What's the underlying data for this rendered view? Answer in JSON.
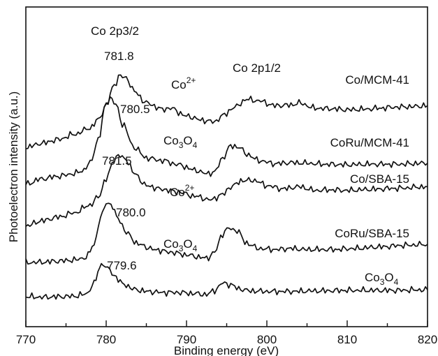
{
  "chart_data": {
    "type": "line",
    "xlabel": "Binding energy (eV)",
    "ylabel": "Photoelectron intensity (a.u.)",
    "xlim": [
      770,
      820
    ],
    "xticks": [
      "770",
      "780",
      "790",
      "800",
      "810",
      "820"
    ],
    "y_ticks_shown": false,
    "grid": false,
    "series": [
      {
        "name": "Co/MCM-41",
        "values": [
          [
            770,
            3.05
          ],
          [
            772,
            3.13
          ],
          [
            774,
            3.2
          ],
          [
            776,
            3.3
          ],
          [
            778,
            3.42
          ],
          [
            779,
            3.58
          ],
          [
            780,
            3.85
          ],
          [
            781,
            4.25
          ],
          [
            781.8,
            4.42
          ],
          [
            782.5,
            4.38
          ],
          [
            783.5,
            4.12
          ],
          [
            785,
            3.9
          ],
          [
            787,
            3.78
          ],
          [
            788,
            3.8
          ],
          [
            790,
            3.65
          ],
          [
            792,
            3.57
          ],
          [
            793.5,
            3.54
          ],
          [
            794.5,
            3.66
          ],
          [
            796,
            3.82
          ],
          [
            797.5,
            3.97
          ],
          [
            799,
            3.94
          ],
          [
            801,
            3.85
          ],
          [
            803,
            3.86
          ],
          [
            804,
            3.9
          ],
          [
            806,
            3.8
          ],
          [
            808,
            3.79
          ],
          [
            810,
            3.77
          ],
          [
            812,
            3.78
          ],
          [
            814,
            3.8
          ],
          [
            816,
            3.82
          ],
          [
            818,
            3.83
          ],
          [
            820,
            3.85
          ]
        ]
      },
      {
        "name": "CoRu/MCM-41",
        "values": [
          [
            770,
            2.35
          ],
          [
            772,
            2.45
          ],
          [
            774,
            2.5
          ],
          [
            776,
            2.55
          ],
          [
            777,
            2.6
          ],
          [
            778,
            2.75
          ],
          [
            779,
            3.2
          ],
          [
            780,
            3.9
          ],
          [
            780.5,
            4.0
          ],
          [
            781.2,
            3.88
          ],
          [
            782,
            3.5
          ],
          [
            783.5,
            3.05
          ],
          [
            785,
            2.85
          ],
          [
            787,
            2.8
          ],
          [
            789,
            2.72
          ],
          [
            791,
            2.62
          ],
          [
            792.5,
            2.55
          ],
          [
            793.5,
            2.58
          ],
          [
            794.5,
            2.85
          ],
          [
            795.5,
            3.08
          ],
          [
            796.5,
            3.06
          ],
          [
            797.5,
            2.92
          ],
          [
            799,
            2.8
          ],
          [
            801,
            2.74
          ],
          [
            803,
            2.76
          ],
          [
            805,
            2.75
          ],
          [
            807,
            2.73
          ],
          [
            810,
            2.72
          ],
          [
            813,
            2.73
          ],
          [
            816,
            2.73
          ],
          [
            820,
            2.75
          ]
        ]
      },
      {
        "name": "Co/SBA-15",
        "values": [
          [
            770,
            1.55
          ],
          [
            772,
            1.65
          ],
          [
            774,
            1.72
          ],
          [
            776,
            1.8
          ],
          [
            778,
            1.95
          ],
          [
            779,
            2.1
          ],
          [
            780,
            2.45
          ],
          [
            781,
            2.82
          ],
          [
            781.5,
            2.9
          ],
          [
            782.5,
            2.82
          ],
          [
            783.5,
            2.55
          ],
          [
            785,
            2.32
          ],
          [
            787,
            2.25
          ],
          [
            789,
            2.2
          ],
          [
            791,
            2.12
          ],
          [
            793,
            2.05
          ],
          [
            794.5,
            2.15
          ],
          [
            795.5,
            2.3
          ],
          [
            797,
            2.42
          ],
          [
            798.5,
            2.42
          ],
          [
            800,
            2.32
          ],
          [
            802,
            2.26
          ],
          [
            804,
            2.3
          ],
          [
            806,
            2.23
          ],
          [
            808,
            2.24
          ],
          [
            810,
            2.23
          ],
          [
            813,
            2.25
          ],
          [
            816,
            2.27
          ],
          [
            820,
            2.3
          ]
        ]
      },
      {
        "name": "CoRu/SBA-15",
        "values": [
          [
            770,
            0.85
          ],
          [
            772,
            0.86
          ],
          [
            774,
            0.88
          ],
          [
            776,
            0.9
          ],
          [
            777.5,
            0.95
          ],
          [
            778.5,
            1.2
          ],
          [
            779.3,
            1.7
          ],
          [
            780,
            2.0
          ],
          [
            780.6,
            1.95
          ],
          [
            781.5,
            1.7
          ],
          [
            782.5,
            1.42
          ],
          [
            784,
            1.2
          ],
          [
            786,
            1.1
          ],
          [
            788,
            1.05
          ],
          [
            790,
            1.0
          ],
          [
            791.5,
            0.96
          ],
          [
            792.5,
            0.93
          ],
          [
            793.5,
            1.05
          ],
          [
            794.5,
            1.4
          ],
          [
            795.3,
            1.52
          ],
          [
            796.3,
            1.45
          ],
          [
            797.5,
            1.22
          ],
          [
            799,
            1.12
          ],
          [
            801,
            1.1
          ],
          [
            803,
            1.12
          ],
          [
            805,
            1.1
          ],
          [
            808,
            1.1
          ],
          [
            811,
            1.12
          ],
          [
            814,
            1.15
          ],
          [
            817,
            1.18
          ],
          [
            820,
            1.2
          ]
        ]
      },
      {
        "name": "Co3O4",
        "values": [
          [
            770,
            0.2
          ],
          [
            772,
            0.19
          ],
          [
            774,
            0.2
          ],
          [
            776,
            0.21
          ],
          [
            777.5,
            0.25
          ],
          [
            778.5,
            0.45
          ],
          [
            779.2,
            0.75
          ],
          [
            779.6,
            0.8
          ],
          [
            780.2,
            0.75
          ],
          [
            781,
            0.6
          ],
          [
            782,
            0.45
          ],
          [
            783.5,
            0.34
          ],
          [
            785,
            0.3
          ],
          [
            787,
            0.28
          ],
          [
            789,
            0.28
          ],
          [
            791,
            0.26
          ],
          [
            792.5,
            0.24
          ],
          [
            793.5,
            0.32
          ],
          [
            794.5,
            0.46
          ],
          [
            795.5,
            0.43
          ],
          [
            796.5,
            0.35
          ],
          [
            798,
            0.31
          ],
          [
            800,
            0.3
          ],
          [
            803,
            0.3
          ],
          [
            806,
            0.31
          ],
          [
            810,
            0.32
          ],
          [
            815,
            0.32
          ],
          [
            820,
            0.33
          ]
        ]
      }
    ],
    "annotations": {
      "co2p32": "Co 2p3/2",
      "co2p12": "Co 2p1/2",
      "peak_1": "781.8",
      "peak_2": "780.5",
      "peak_3": "781.5",
      "peak_4": "780.0",
      "peak_5": "779.6",
      "label_co2plus_1": {
        "base": "Co",
        "sup": "2+"
      },
      "label_co3o4_1": {
        "a": "Co",
        "b": "3",
        "c": "O",
        "d": "4"
      },
      "label_co2plus_2": {
        "base": "Co",
        "sup": "2+"
      },
      "label_co3o4_2": {
        "a": "Co",
        "b": "3",
        "c": "O",
        "d": "4"
      },
      "series_label_1": "Co/MCM-41",
      "series_label_2": "CoRu/MCM-41",
      "series_label_3": "Co/SBA-15",
      "series_label_4": "CoRu/SBA-15",
      "series_label_5": {
        "a": "Co",
        "b": "3",
        "c": "O",
        "d": "4"
      }
    }
  }
}
